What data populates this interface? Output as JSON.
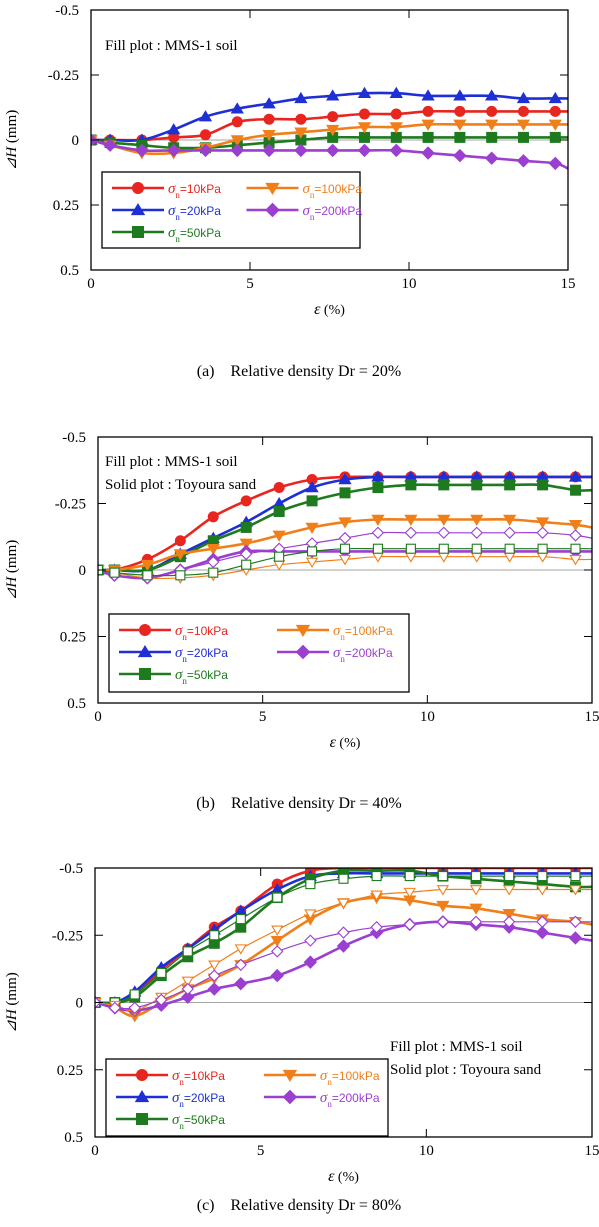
{
  "chart_data": [
    {
      "type": "line",
      "caption": "(a) Relative density Dr = 20%",
      "annotations": [
        "Fill plot : MMS-1 soil"
      ],
      "xlabel_sym": "ε",
      "xlabel_unit": " (%)",
      "ylabel_sym": "⊿H",
      "ylabel_unit": " (mm)",
      "xlim": [
        0,
        15
      ],
      "ylim": [
        -0.5,
        0.5
      ],
      "y_inverted": true,
      "xticks": [
        "0",
        "5",
        "10",
        "15"
      ],
      "yticks": [
        "-0.5",
        "-0.25",
        "0",
        "0.25",
        "0.5"
      ],
      "grid": false,
      "legend_position": "lower-left",
      "series": [
        {
          "name": "=10kPa",
          "color": "#e8251f",
          "marker": "circle",
          "filled": true,
          "x": [
            0,
            0.6,
            1.6,
            2.6,
            3.6,
            4.6,
            5.6,
            6.6,
            7.6,
            8.6,
            9.6,
            10.6,
            11.6,
            12.6,
            13.6,
            14.6,
            15
          ],
          "y": [
            0,
            0,
            0,
            -0.01,
            -0.02,
            -0.07,
            -0.08,
            -0.08,
            -0.09,
            -0.1,
            -0.1,
            -0.11,
            -0.11,
            -0.11,
            -0.11,
            -0.11,
            -0.11
          ]
        },
        {
          "name": "=20kPa",
          "color": "#1f2fd6",
          "marker": "triangle-up",
          "filled": true,
          "x": [
            0,
            0.6,
            1.6,
            2.6,
            3.6,
            4.6,
            5.6,
            6.6,
            7.6,
            8.6,
            9.6,
            10.6,
            11.6,
            12.6,
            13.6,
            14.6,
            15
          ],
          "y": [
            0,
            0,
            0,
            -0.04,
            -0.09,
            -0.12,
            -0.14,
            -0.16,
            -0.17,
            -0.18,
            -0.18,
            -0.17,
            -0.17,
            -0.17,
            -0.16,
            -0.16,
            -0.16
          ]
        },
        {
          "name": "=50kPa",
          "color": "#1e7a1e",
          "marker": "square",
          "filled": true,
          "x": [
            0,
            0.6,
            1.6,
            2.6,
            3.6,
            4.6,
            5.6,
            6.6,
            7.6,
            8.6,
            9.6,
            10.6,
            11.6,
            12.6,
            13.6,
            14.6,
            15
          ],
          "y": [
            0,
            0.01,
            0.02,
            0.03,
            0.03,
            0.02,
            0.01,
            0,
            -0.01,
            -0.01,
            -0.01,
            -0.01,
            -0.01,
            -0.01,
            -0.01,
            -0.01,
            -0.01
          ]
        },
        {
          "name": "=100kPa",
          "color": "#f07f1a",
          "marker": "triangle-down",
          "filled": true,
          "x": [
            0,
            0.6,
            1.6,
            2.6,
            3.6,
            4.6,
            5.6,
            6.6,
            7.6,
            8.6,
            9.6,
            10.6,
            11.6,
            12.6,
            13.6,
            14.6,
            15
          ],
          "y": [
            0,
            0.02,
            0.05,
            0.05,
            0.03,
            0,
            -0.02,
            -0.03,
            -0.04,
            -0.05,
            -0.05,
            -0.06,
            -0.06,
            -0.06,
            -0.06,
            -0.06,
            -0.06
          ]
        },
        {
          "name": "=200kPa",
          "color": "#9b3fd0",
          "marker": "diamond",
          "filled": true,
          "x": [
            0,
            0.6,
            1.6,
            2.6,
            3.6,
            4.6,
            5.6,
            6.6,
            7.6,
            8.6,
            9.6,
            10.6,
            11.6,
            12.6,
            13.6,
            14.6,
            15
          ],
          "y": [
            0,
            0.02,
            0.04,
            0.04,
            0.04,
            0.04,
            0.04,
            0.04,
            0.04,
            0.04,
            0.04,
            0.05,
            0.06,
            0.07,
            0.08,
            0.09,
            0.11
          ]
        }
      ],
      "legend_layout": [
        0,
        3,
        1,
        4,
        2
      ]
    },
    {
      "type": "line",
      "caption": "(b) Relative density Dr = 40%",
      "annotations": [
        "Fill plot : MMS-1 soil",
        "Solid plot : Toyoura sand"
      ],
      "xlabel_sym": "ε",
      "xlabel_unit": " (%)",
      "ylabel_sym": "⊿H",
      "ylabel_unit": " (mm)",
      "xlim": [
        0,
        15
      ],
      "ylim": [
        -0.5,
        0.5
      ],
      "y_inverted": true,
      "xticks": [
        "0",
        "5",
        "10",
        "15"
      ],
      "yticks": [
        "-0.5",
        "-0.25",
        "0",
        "0.25",
        "0.5"
      ],
      "grid": false,
      "legend_position": "lower-left",
      "series": [
        {
          "name": "=10kPa",
          "color": "#e8251f",
          "marker": "circle",
          "filled": true,
          "x": [
            0,
            0.5,
            1.5,
            2.5,
            3.5,
            4.5,
            5.5,
            6.5,
            7.5,
            8.5,
            9.5,
            10.5,
            11.5,
            12.5,
            13.5,
            14.5,
            15
          ],
          "y": [
            0,
            0,
            -0.04,
            -0.11,
            -0.2,
            -0.26,
            -0.31,
            -0.34,
            -0.35,
            -0.35,
            -0.35,
            -0.35,
            -0.35,
            -0.35,
            -0.35,
            -0.35,
            -0.35
          ]
        },
        {
          "name": "=20kPa",
          "color": "#1f2fd6",
          "marker": "triangle-up",
          "filled": true,
          "x": [
            0,
            0.5,
            1.5,
            2.5,
            3.5,
            4.5,
            5.5,
            6.5,
            7.5,
            8.5,
            9.5,
            10.5,
            11.5,
            12.5,
            13.5,
            14.5,
            15
          ],
          "y": [
            0,
            0,
            0,
            -0.06,
            -0.12,
            -0.18,
            -0.25,
            -0.31,
            -0.34,
            -0.35,
            -0.35,
            -0.35,
            -0.35,
            -0.35,
            -0.35,
            -0.35,
            -0.35
          ]
        },
        {
          "name": "=50kPa",
          "color": "#1e7a1e",
          "marker": "square",
          "filled": true,
          "x": [
            0,
            0.5,
            1.5,
            2.5,
            3.5,
            4.5,
            5.5,
            6.5,
            7.5,
            8.5,
            9.5,
            10.5,
            11.5,
            12.5,
            13.5,
            14.5,
            15
          ],
          "y": [
            0,
            0,
            0,
            -0.05,
            -0.11,
            -0.16,
            -0.22,
            -0.26,
            -0.29,
            -0.31,
            -0.32,
            -0.32,
            -0.32,
            -0.32,
            -0.32,
            -0.3,
            -0.3
          ]
        },
        {
          "name": "=100kPa",
          "color": "#f07f1a",
          "marker": "triangle-down",
          "filled": true,
          "x": [
            0,
            0.5,
            1.5,
            2.5,
            3.5,
            4.5,
            5.5,
            6.5,
            7.5,
            8.5,
            9.5,
            10.5,
            11.5,
            12.5,
            13.5,
            14.5,
            15
          ],
          "y": [
            0,
            0,
            -0.02,
            -0.06,
            -0.08,
            -0.1,
            -0.13,
            -0.16,
            -0.18,
            -0.19,
            -0.19,
            -0.19,
            -0.19,
            -0.19,
            -0.18,
            -0.17,
            -0.16
          ]
        },
        {
          "name": "=200kPa",
          "color": "#9b3fd0",
          "marker": "diamond",
          "filled": true,
          "x": [
            0,
            0.5,
            1.5,
            2.5,
            3.5,
            4.5,
            5.5,
            6.5,
            7.5,
            8.5,
            9.5,
            10.5,
            11.5,
            12.5,
            13.5,
            14.5,
            15
          ],
          "y": [
            0,
            0.02,
            0.03,
            0,
            -0.04,
            -0.07,
            -0.07,
            -0.07,
            -0.07,
            -0.07,
            -0.07,
            -0.07,
            -0.07,
            -0.07,
            -0.07,
            -0.07,
            -0.07
          ]
        },
        {
          "name": "",
          "color": "#f07f1a",
          "marker": "triangle-down",
          "filled": false,
          "x": [
            0,
            0.5,
            1.5,
            2.5,
            3.5,
            4.5,
            5.5,
            6.5,
            7.5,
            8.5,
            9.5,
            10.5,
            11.5,
            12.5,
            13.5,
            14.5,
            15
          ],
          "y": [
            0,
            0.01,
            0.03,
            0.03,
            0.02,
            0,
            -0.02,
            -0.03,
            -0.04,
            -0.05,
            -0.05,
            -0.05,
            -0.05,
            -0.05,
            -0.05,
            -0.04,
            -0.04
          ]
        },
        {
          "name": "",
          "color": "#9b3fd0",
          "marker": "diamond",
          "filled": false,
          "x": [
            0,
            0.5,
            1.5,
            2.5,
            3.5,
            4.5,
            5.5,
            6.5,
            7.5,
            8.5,
            9.5,
            10.5,
            11.5,
            12.5,
            13.5,
            14.5,
            15
          ],
          "y": [
            0,
            0.02,
            0.03,
            0,
            -0.03,
            -0.06,
            -0.08,
            -0.1,
            -0.12,
            -0.14,
            -0.14,
            -0.14,
            -0.14,
            -0.14,
            -0.14,
            -0.13,
            -0.12
          ]
        },
        {
          "name": "",
          "color": "#1e7a1e",
          "marker": "square",
          "filled": false,
          "x": [
            0,
            0.5,
            1.5,
            2.5,
            3.5,
            4.5,
            5.5,
            6.5,
            7.5,
            8.5,
            9.5,
            10.5,
            11.5,
            12.5,
            13.5,
            14.5,
            15
          ],
          "y": [
            0,
            0.01,
            0.02,
            0.02,
            0.01,
            -0.02,
            -0.05,
            -0.07,
            -0.08,
            -0.08,
            -0.08,
            -0.08,
            -0.08,
            -0.08,
            -0.08,
            -0.08,
            -0.08
          ]
        }
      ],
      "legend_layout": [
        0,
        3,
        1,
        4,
        2
      ]
    },
    {
      "type": "line",
      "caption": "(c) Relative density Dr = 80%",
      "annotations": [
        "Fill plot : MMS-1 soil",
        "Solid plot : Toyoura sand"
      ],
      "xlabel_sym": "ε",
      "xlabel_unit": " (%)",
      "ylabel_sym": "⊿H",
      "ylabel_unit": " (mm)",
      "xlim": [
        0,
        15
      ],
      "ylim": [
        -0.5,
        0.5
      ],
      "y_inverted": true,
      "xticks": [
        "0",
        "5",
        "10",
        "15"
      ],
      "yticks": [
        "-0.5",
        "-0.25",
        "0",
        "0.25",
        "0.5"
      ],
      "grid": false,
      "legend_position": "lower-left",
      "series": [
        {
          "name": "=10kPa",
          "color": "#e8251f",
          "marker": "circle",
          "filled": true,
          "x": [
            0,
            0.6,
            1.2,
            2,
            2.8,
            3.6,
            4.4,
            5.5,
            6.5,
            7.5,
            8.5,
            9.5,
            10.5,
            11.5,
            12.5,
            13.5,
            14.5,
            15
          ],
          "y": [
            0,
            0,
            -0.03,
            -0.12,
            -0.2,
            -0.28,
            -0.34,
            -0.44,
            -0.49,
            -0.5,
            -0.5,
            -0.5,
            -0.5,
            -0.5,
            -0.5,
            -0.5,
            -0.5,
            -0.5
          ]
        },
        {
          "name": "=20kPa",
          "color": "#1f2fd6",
          "marker": "triangle-up",
          "filled": true,
          "x": [
            0,
            0.6,
            1.2,
            2,
            2.8,
            3.6,
            4.4,
            5.5,
            6.5,
            7.5,
            8.5,
            9.5,
            10.5,
            11.5,
            12.5,
            13.5,
            14.5,
            15
          ],
          "y": [
            0,
            0,
            -0.04,
            -0.13,
            -0.2,
            -0.27,
            -0.34,
            -0.42,
            -0.47,
            -0.48,
            -0.48,
            -0.48,
            -0.48,
            -0.48,
            -0.48,
            -0.48,
            -0.48,
            -0.48
          ]
        },
        {
          "name": "=50kPa",
          "color": "#1e7a1e",
          "marker": "square",
          "filled": true,
          "x": [
            0,
            0.6,
            1.2,
            2,
            2.8,
            3.6,
            4.4,
            5.5,
            6.5,
            7.5,
            8.5,
            9.5,
            10.5,
            11.5,
            12.5,
            13.5,
            14.5,
            15
          ],
          "y": [
            0,
            0,
            -0.02,
            -0.1,
            -0.17,
            -0.22,
            -0.28,
            -0.39,
            -0.46,
            -0.49,
            -0.49,
            -0.49,
            -0.47,
            -0.46,
            -0.45,
            -0.44,
            -0.43,
            -0.43
          ]
        },
        {
          "name": "=100kPa",
          "color": "#f07f1a",
          "marker": "triangle-down",
          "filled": true,
          "x": [
            0,
            0.6,
            1.2,
            2,
            2.8,
            3.6,
            4.4,
            5.5,
            6.5,
            7.5,
            8.5,
            9.5,
            10.5,
            11.5,
            12.5,
            13.5,
            14.5,
            15
          ],
          "y": [
            0,
            0.02,
            0.05,
            0,
            -0.05,
            -0.09,
            -0.14,
            -0.23,
            -0.31,
            -0.37,
            -0.39,
            -0.38,
            -0.36,
            -0.35,
            -0.33,
            -0.31,
            -0.3,
            -0.29
          ]
        },
        {
          "name": "=200kPa",
          "color": "#9b3fd0",
          "marker": "diamond",
          "filled": true,
          "x": [
            0,
            0.6,
            1.2,
            2,
            2.8,
            3.6,
            4.4,
            5.5,
            6.5,
            7.5,
            8.5,
            9.5,
            10.5,
            11.5,
            12.5,
            13.5,
            14.5,
            15
          ],
          "y": [
            0,
            0.02,
            0.03,
            0.01,
            -0.02,
            -0.05,
            -0.07,
            -0.1,
            -0.15,
            -0.21,
            -0.26,
            -0.29,
            -0.3,
            -0.29,
            -0.28,
            -0.26,
            -0.24,
            -0.23
          ]
        },
        {
          "name": "",
          "color": "#1e7a1e",
          "marker": "square",
          "filled": false,
          "x": [
            0,
            0.6,
            1.2,
            2,
            2.8,
            3.6,
            4.4,
            5.5,
            6.5,
            7.5,
            8.5,
            9.5,
            10.5,
            11.5,
            12.5,
            13.5,
            14.5,
            15
          ],
          "y": [
            0,
            0,
            -0.03,
            -0.11,
            -0.19,
            -0.25,
            -0.31,
            -0.39,
            -0.44,
            -0.46,
            -0.47,
            -0.47,
            -0.47,
            -0.47,
            -0.47,
            -0.47,
            -0.47,
            -0.47
          ]
        },
        {
          "name": "",
          "color": "#f07f1a",
          "marker": "triangle-down",
          "filled": false,
          "x": [
            0,
            0.6,
            1.2,
            2,
            2.8,
            3.6,
            4.4,
            5.5,
            6.5,
            7.5,
            8.5,
            9.5,
            10.5,
            11.5,
            12.5,
            13.5,
            14.5,
            15
          ],
          "y": [
            0,
            0.01,
            0.03,
            -0.02,
            -0.08,
            -0.14,
            -0.2,
            -0.27,
            -0.33,
            -0.37,
            -0.4,
            -0.41,
            -0.42,
            -0.42,
            -0.42,
            -0.42,
            -0.42,
            -0.42
          ]
        },
        {
          "name": "",
          "color": "#9b3fd0",
          "marker": "diamond",
          "filled": false,
          "x": [
            0,
            0.6,
            1.2,
            2,
            2.8,
            3.6,
            4.4,
            5.5,
            6.5,
            7.5,
            8.5,
            9.5,
            10.5,
            11.5,
            12.5,
            13.5,
            14.5,
            15
          ],
          "y": [
            0,
            0.02,
            0.02,
            -0.01,
            -0.05,
            -0.1,
            -0.14,
            -0.19,
            -0.23,
            -0.26,
            -0.28,
            -0.29,
            -0.3,
            -0.3,
            -0.3,
            -0.3,
            -0.3,
            -0.3
          ]
        }
      ],
      "legend_layout": [
        0,
        3,
        1,
        4,
        2
      ],
      "annotation_position": "right"
    }
  ]
}
